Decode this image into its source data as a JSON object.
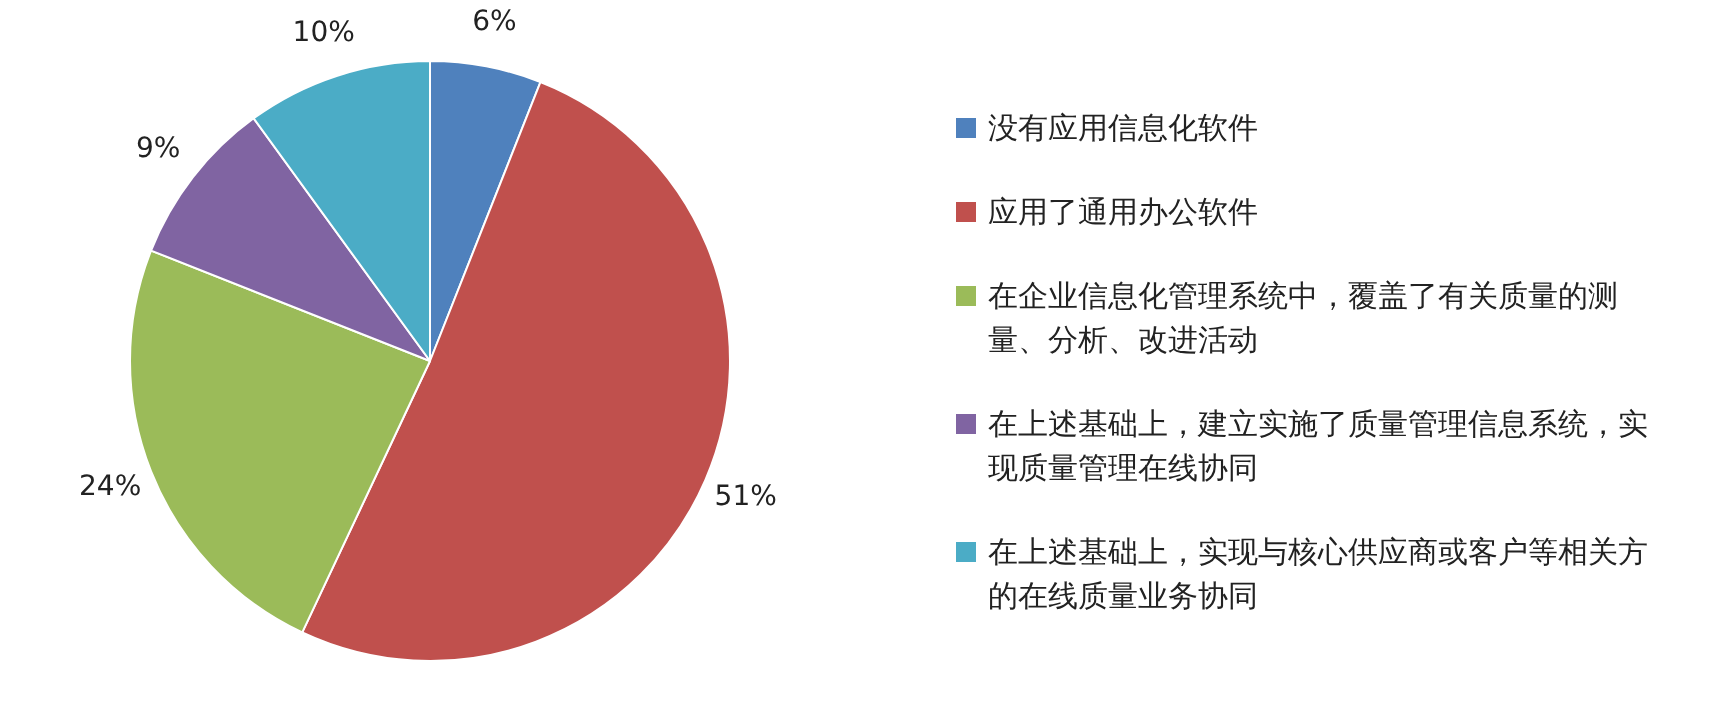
{
  "chart_data": {
    "type": "pie",
    "categories": [
      "没有应用信息化软件",
      "应用了通用办公软件",
      "在企业信息化管理系统中，覆盖了有关质量的测量、分析、改进活动",
      "在上述基础上，建立实施了质量管理信息系统，实现质量管理在线协同",
      "在上述基础上，实现与核心供应商或客户等相关方的在线质量业务协同"
    ],
    "values": [
      6,
      51,
      24,
      9,
      10
    ],
    "value_labels": [
      "6%",
      "51%",
      "24%",
      "9%",
      "10%"
    ],
    "colors": [
      "#4f81bd",
      "#c0504d",
      "#9bbb59",
      "#8064a2",
      "#4bacc6"
    ],
    "legend": "right"
  }
}
